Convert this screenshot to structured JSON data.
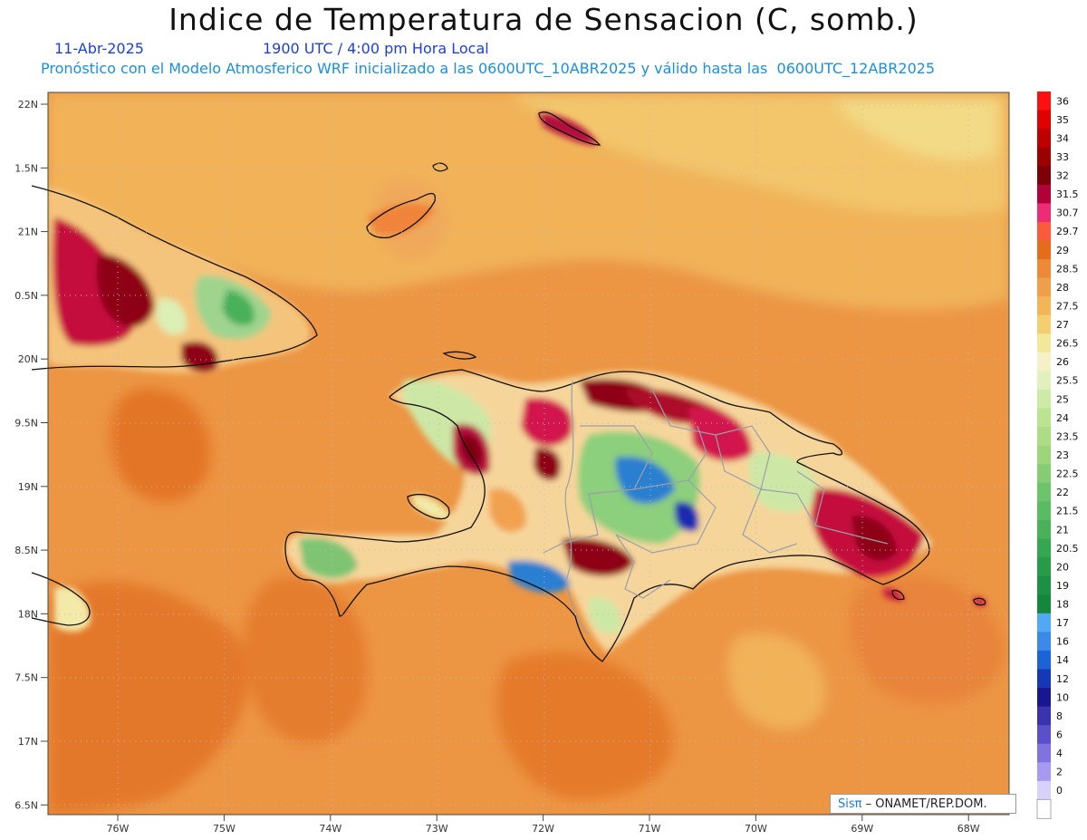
{
  "title": "Indice de Temperatura de Sensacion (C, somb.)",
  "date_label": "11-Abr-2025",
  "time_label": "1900 UTC / 4:00 pm Hora Local",
  "model_label": "Pronóstico con el Modelo Atmosferico WRF inicializado a las 0600UTC_10ABR2025 y válido hasta las  0600UTC_12ABR2025",
  "credit": {
    "brand": "Sisπ",
    "text": "– ONAMET/REP.DOM."
  },
  "lat_labels": [
    "22N",
    "1.5N",
    "21N",
    "0.5N",
    "20N",
    "9.5N",
    "19N",
    "8.5N",
    "18N",
    "7.5N",
    "17N",
    "6.5N"
  ],
  "lon_labels": [
    "76W",
    "75W",
    "74W",
    "73W",
    "72W",
    "71W",
    "70W",
    "69W",
    "68W"
  ],
  "legend": [
    {
      "label": "36",
      "color": "#ff1010"
    },
    {
      "label": "35",
      "color": "#e00000"
    },
    {
      "label": "34",
      "color": "#c00000"
    },
    {
      "label": "33",
      "color": "#9c0000"
    },
    {
      "label": "32",
      "color": "#7d0008"
    },
    {
      "label": "31.5",
      "color": "#b3003a"
    },
    {
      "label": "30.7",
      "color": "#ee2b74"
    },
    {
      "label": "29.7",
      "color": "#fb5a3c"
    },
    {
      "label": "29",
      "color": "#e56c1c"
    },
    {
      "label": "28.5",
      "color": "#ec8a3a"
    },
    {
      "label": "28",
      "color": "#ef9f4c"
    },
    {
      "label": "27.5",
      "color": "#f2b659"
    },
    {
      "label": "27",
      "color": "#f4cf72"
    },
    {
      "label": "26.5",
      "color": "#f3e79a"
    },
    {
      "label": "26",
      "color": "#f4f0c8"
    },
    {
      "label": "25.5",
      "color": "#e2f0bd"
    },
    {
      "label": "25",
      "color": "#cdeaa6"
    },
    {
      "label": "24",
      "color": "#bbe392"
    },
    {
      "label": "23.5",
      "color": "#acdc86"
    },
    {
      "label": "23",
      "color": "#9dd47c"
    },
    {
      "label": "22.5",
      "color": "#86cc74"
    },
    {
      "label": "22",
      "color": "#6ec46a"
    },
    {
      "label": "21.5",
      "color": "#5abb62"
    },
    {
      "label": "21",
      "color": "#48b15a"
    },
    {
      "label": "20.5",
      "color": "#37a653"
    },
    {
      "label": "20",
      "color": "#279b4a"
    },
    {
      "label": "19",
      "color": "#1c9144"
    },
    {
      "label": "18",
      "color": "#14873c"
    },
    {
      "label": "17",
      "color": "#52a8f2"
    },
    {
      "label": "16",
      "color": "#3b8ae8"
    },
    {
      "label": "14",
      "color": "#1d62d8"
    },
    {
      "label": "12",
      "color": "#1438b8"
    },
    {
      "label": "10",
      "color": "#1a1690"
    },
    {
      "label": "8",
      "color": "#3a33b0"
    },
    {
      "label": "6",
      "color": "#5a50cc"
    },
    {
      "label": "4",
      "color": "#8073e0"
    },
    {
      "label": "2",
      "color": "#a89af0"
    },
    {
      "label": "0",
      "color": "#d8d2fa"
    },
    {
      "label": "",
      "color": "#ffffff"
    }
  ]
}
